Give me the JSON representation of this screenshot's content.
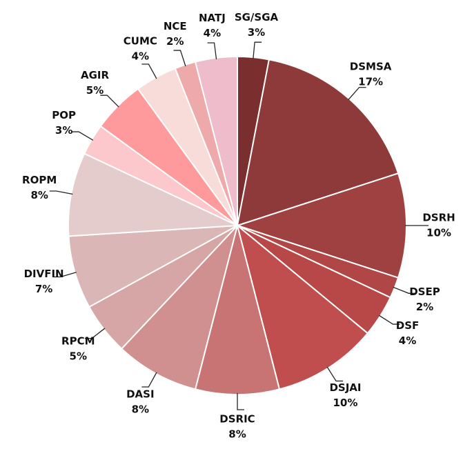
{
  "chart_data": {
    "type": "pie",
    "categories": [
      "SG/SGA",
      "DSMSA",
      "DSRH",
      "DSEP",
      "DSF",
      "DSJAI",
      "DSRIC",
      "DASI",
      "RPCM",
      "DIVFIN",
      "ROPM",
      "POP",
      "AGIR",
      "CUMC",
      "NCE",
      "NATJ"
    ],
    "values": [
      3,
      17,
      10,
      2,
      4,
      10,
      8,
      8,
      5,
      7,
      8,
      3,
      5,
      4,
      2,
      4
    ],
    "value_labels": [
      "3%",
      "17%",
      "10%",
      "2%",
      "4%",
      "10%",
      "8%",
      "8%",
      "5%",
      "7%",
      "8%",
      "3%",
      "5%",
      "4%",
      "2%",
      "4%"
    ],
    "colors": [
      "#7b2e2e",
      "#8e3a3a",
      "#a04141",
      "#b04646",
      "#b84848",
      "#c04e4e",
      "#c87474",
      "#d09090",
      "#d6a5a5",
      "#dbb6b6",
      "#e5cccc",
      "#fdc8cc",
      "#fe9a9c",
      "#f8dcda",
      "#eeaaaa",
      "#efbccc"
    ]
  }
}
